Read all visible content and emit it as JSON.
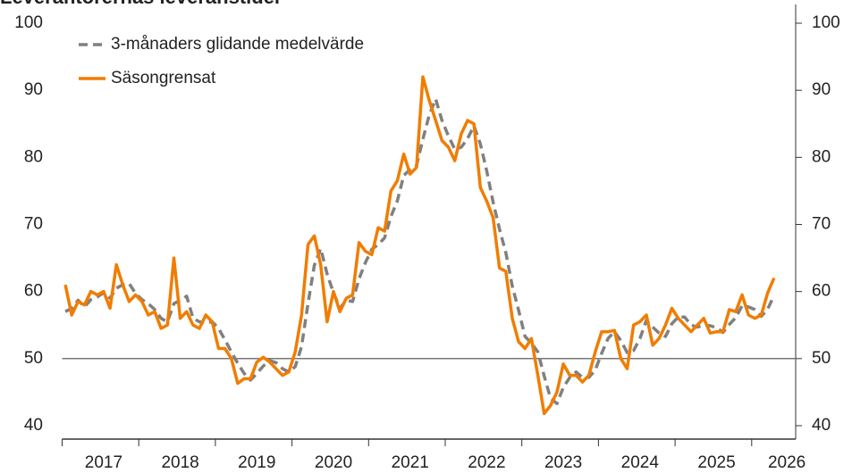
{
  "chart_data": {
    "type": "line",
    "title": "Leverantörernas leveranstider",
    "categories": [
      null,
      null,
      null,
      null,
      null,
      null,
      "2017",
      null,
      null,
      null,
      null,
      null,
      null,
      null,
      null,
      null,
      null,
      null,
      "2018",
      null,
      null,
      null,
      null,
      null,
      null,
      null,
      null,
      null,
      null,
      null,
      "2019",
      null,
      null,
      null,
      null,
      null,
      null,
      null,
      null,
      null,
      null,
      null,
      "2020",
      null,
      null,
      null,
      null,
      null,
      null,
      null,
      null,
      null,
      null,
      null,
      "2021",
      null,
      null,
      null,
      null,
      null,
      null,
      null,
      null,
      null,
      null,
      null,
      "2022",
      null,
      null,
      null,
      null,
      null,
      null,
      null,
      null,
      null,
      null,
      null,
      "2023",
      null,
      null,
      null,
      null,
      null,
      null,
      null,
      null,
      null,
      null,
      null,
      "2024",
      null,
      null,
      null,
      null,
      null,
      null,
      null,
      null,
      null,
      null,
      null,
      "2025",
      null,
      null,
      null,
      null,
      null,
      null,
      null,
      null,
      null,
      null,
      "2026"
    ],
    "series": [
      {
        "name": "3-månaders glidande medelvärde",
        "color": "#808080",
        "dash": true,
        "values": [
          57,
          57.5,
          58.7,
          57.7,
          58.8,
          59.2,
          59.8,
          59,
          60.5,
          61,
          61.2,
          59.7,
          58.8,
          58.2,
          57.3,
          56,
          55.5,
          58.2,
          58.7,
          59.3,
          56,
          55.5,
          55.3,
          55.5,
          54.5,
          52.8,
          51,
          49.3,
          47.8,
          46.8,
          47.8,
          48.9,
          49.7,
          49.4,
          48.5,
          48,
          48.8,
          51.8,
          58.2,
          63.9,
          66.4,
          62.6,
          59.8,
          57.5,
          58.7,
          58.5,
          61.9,
          64.3,
          66.3,
          67,
          68,
          71.2,
          73.5,
          77.3,
          78.2,
          78.8,
          82.7,
          86.3,
          88.7,
          85.5,
          83.2,
          81.2,
          81.5,
          82.8,
          84.7,
          82,
          78,
          73.3,
          69.3,
          65.8,
          60.8,
          57.2,
          53.3,
          52.3,
          51,
          47.4,
          44.1,
          43.3,
          45.7,
          47.2,
          48,
          47.2,
          47.2,
          48.3,
          50.8,
          53,
          54,
          52.7,
          50.9,
          51.2,
          53,
          55.7,
          54.7,
          53.8,
          53.3,
          55.2,
          56.2,
          56.2,
          55,
          54.7,
          55,
          54.9,
          54.6,
          53.9,
          55.1,
          56.1,
          57.9,
          57.7,
          57.3,
          56.3,
          57.4,
          59.4,
          null,
          null
        ]
      },
      {
        "name": "Säsongrensat",
        "color": "#f07d00",
        "dash": false,
        "values": [
          61,
          56.5,
          58.5,
          58,
          60,
          59.5,
          60,
          57.5,
          64,
          61,
          58.5,
          59.5,
          58.5,
          56.5,
          57,
          54.5,
          55,
          65,
          56,
          57,
          55,
          54.5,
          56.5,
          55.5,
          51.5,
          51.5,
          50,
          46.3,
          47,
          47,
          49.5,
          50.2,
          49.5,
          48.5,
          47.5,
          48,
          51,
          56.5,
          67,
          68.3,
          64,
          55.5,
          60,
          57,
          59,
          59.5,
          67.3,
          66,
          65.5,
          69.5,
          69,
          75,
          76.5,
          80.5,
          77.5,
          78.5,
          92,
          88.5,
          85.5,
          82.5,
          81.5,
          79.5,
          83.5,
          85.5,
          85,
          75.5,
          73.5,
          71,
          63.5,
          63,
          56,
          52.5,
          51.5,
          53,
          47.5,
          41.8,
          43,
          45,
          49.2,
          47.5,
          47.5,
          46.5,
          47.5,
          51,
          54,
          54,
          54.2,
          50,
          48.5,
          55,
          55.5,
          56.5,
          52,
          53,
          55,
          57.5,
          56,
          55,
          54,
          55,
          56,
          53.8,
          54,
          54,
          57.3,
          57,
          59.5,
          56.5,
          56,
          56.5,
          59.8,
          62,
          null,
          null
        ]
      }
    ],
    "ylim": [
      38,
      100
    ],
    "yticks": [
      40,
      50,
      60,
      70,
      80,
      90,
      100
    ],
    "y2lim": [
      38,
      100
    ],
    "y2ticks": [
      40,
      50,
      60,
      70,
      80,
      90,
      100
    ],
    "reference_line": 50,
    "legend": "upper left"
  }
}
